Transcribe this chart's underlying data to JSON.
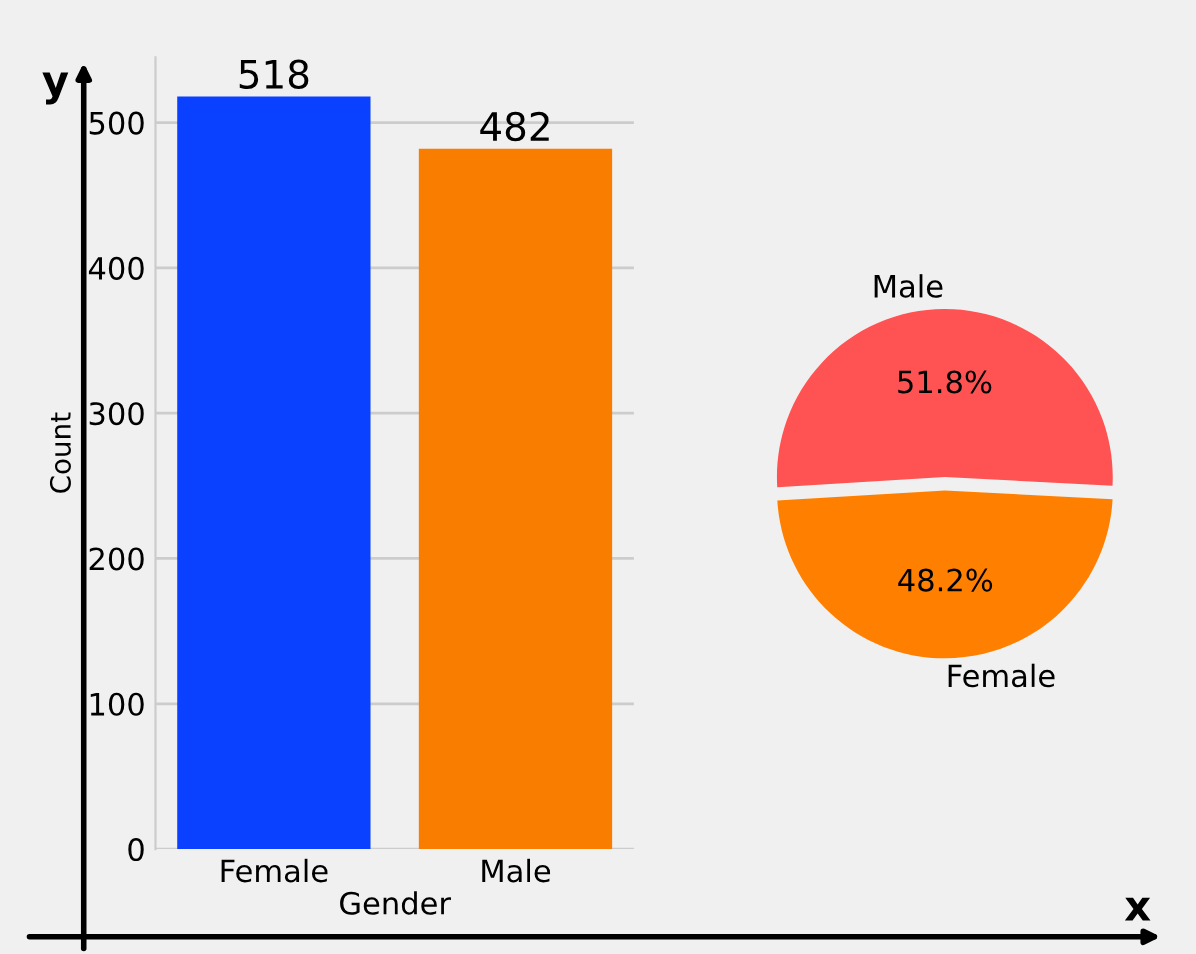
{
  "chart_data": [
    {
      "type": "bar",
      "categories": [
        "Female",
        "Male"
      ],
      "values": [
        518,
        482
      ],
      "colors": [
        "#0a40ff",
        "#f97e00"
      ],
      "ylim": [
        0,
        545
      ],
      "yticks": [
        0,
        100,
        200,
        300,
        400,
        500
      ],
      "xlabel": "Gender",
      "ylabel": "Count",
      "grid": "y",
      "data_labels": true,
      "annotations": [
        "y",
        "x"
      ]
    },
    {
      "type": "pie",
      "categories": [
        "Male",
        "Female"
      ],
      "values": [
        51.8,
        48.2
      ],
      "colors": [
        "#ff5252",
        "#ff8000"
      ],
      "value_labels": [
        "51.8%",
        "48.2%"
      ]
    }
  ]
}
